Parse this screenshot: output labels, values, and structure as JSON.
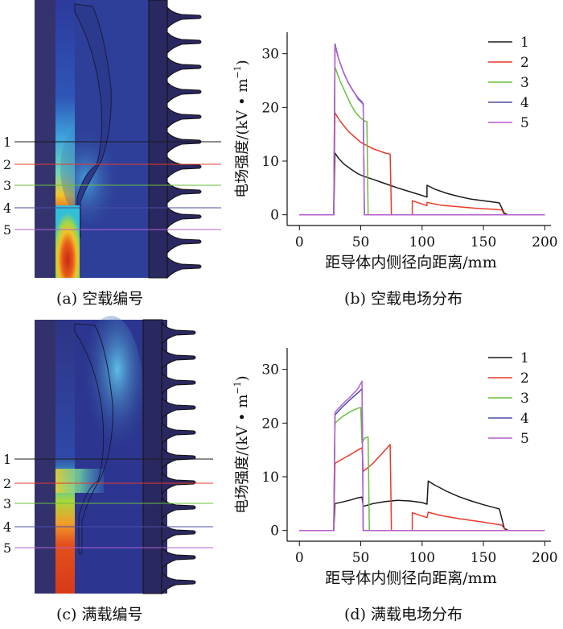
{
  "panels": {
    "a": {
      "caption": "(a)  空载编号",
      "lines": [
        "1",
        "2",
        "3",
        "4",
        "5"
      ]
    },
    "c": {
      "caption": "(c)  满载编号",
      "lines": [
        "1",
        "2",
        "3",
        "4",
        "5"
      ]
    },
    "b": {
      "caption": "(b)  空载电场分布"
    },
    "d": {
      "caption": "(d)  满载电场分布"
    }
  },
  "line_colors": [
    "#1a1a1a",
    "#e8392a",
    "#6bbf3b",
    "#4b4fa6",
    "#b45fcf"
  ],
  "chart_data": [
    {
      "id": "b",
      "type": "line",
      "title": "空载电场分布",
      "xlabel": "距导体内侧径向距离/mm",
      "ylabel": "电场强度/(kV • m",
      "ylabel_sup": "−1",
      "ylabel_close": ")",
      "xlim": [
        -10,
        205
      ],
      "ylim": [
        -2,
        34
      ],
      "xticks": [
        "0",
        "50",
        "100",
        "150",
        "200"
      ],
      "yticks": [
        "0",
        "10",
        "20",
        "30"
      ],
      "legend": [
        "1",
        "2",
        "3",
        "4",
        "5"
      ],
      "legend_position": "top-right",
      "series": [
        {
          "name": "1",
          "points": [
            [
              0,
              0
            ],
            [
              28,
              0
            ],
            [
              28,
              0.4
            ],
            [
              29,
              11.5
            ],
            [
              32,
              10.5
            ],
            [
              36,
              9.5
            ],
            [
              42,
              8.5
            ],
            [
              48,
              7.6
            ],
            [
              52,
              7.2
            ],
            [
              60,
              6.6
            ],
            [
              70,
              5.8
            ],
            [
              80,
              5.0
            ],
            [
              90,
              4.3
            ],
            [
              100,
              3.6
            ],
            [
              104,
              3.3
            ],
            [
              104,
              5.5
            ],
            [
              110,
              4.8
            ],
            [
              120,
              4.0
            ],
            [
              130,
              3.4
            ],
            [
              140,
              2.9
            ],
            [
              150,
              2.6
            ],
            [
              160,
              2.3
            ],
            [
              163,
              2.2
            ],
            [
              167,
              0.3
            ],
            [
              170,
              0
            ],
            [
              200,
              0
            ]
          ]
        },
        {
          "name": "2",
          "points": [
            [
              0,
              0
            ],
            [
              28,
              0
            ],
            [
              28,
              0.4
            ],
            [
              29,
              19
            ],
            [
              33,
              17.5
            ],
            [
              40,
              15.5
            ],
            [
              50,
              13.5
            ],
            [
              60,
              12.3
            ],
            [
              70,
              11.5
            ],
            [
              74,
              11.3
            ],
            [
              75,
              0
            ],
            [
              92,
              0
            ],
            [
              92,
              2.6
            ],
            [
              100,
              2.0
            ],
            [
              104,
              1.7
            ],
            [
              104,
              2.3
            ],
            [
              115,
              1.8
            ],
            [
              130,
              1.5
            ],
            [
              145,
              1.2
            ],
            [
              160,
              1.0
            ],
            [
              165,
              0.9
            ],
            [
              167,
              0
            ],
            [
              200,
              0
            ]
          ]
        },
        {
          "name": "3",
          "points": [
            [
              0,
              0
            ],
            [
              28,
              0
            ],
            [
              28,
              0.4
            ],
            [
              29,
              27.5
            ],
            [
              33,
              25
            ],
            [
              38,
              22.5
            ],
            [
              42,
              20.5
            ],
            [
              46,
              19
            ],
            [
              50,
              18
            ],
            [
              53,
              17.5
            ],
            [
              55,
              17.3
            ],
            [
              56,
              0
            ],
            [
              200,
              0
            ]
          ]
        },
        {
          "name": "4",
          "points": [
            [
              0,
              0
            ],
            [
              28,
              0
            ],
            [
              28,
              0.4
            ],
            [
              29,
              31.8
            ],
            [
              32,
              29
            ],
            [
              36,
              26.5
            ],
            [
              40,
              24.5
            ],
            [
              44,
              23
            ],
            [
              48,
              21.7
            ],
            [
              51,
              21
            ],
            [
              52,
              20.6
            ],
            [
              53,
              0
            ],
            [
              200,
              0
            ]
          ]
        },
        {
          "name": "5",
          "points": [
            [
              0,
              0
            ],
            [
              28,
              0
            ],
            [
              28,
              0.4
            ],
            [
              29,
              31.5
            ],
            [
              32,
              29
            ],
            [
              36,
              26.5
            ],
            [
              40,
              24.5
            ],
            [
              44,
              23
            ],
            [
              48,
              21.5
            ],
            [
              51,
              20.8
            ],
            [
              52,
              20.5
            ],
            [
              53,
              0
            ],
            [
              200,
              0
            ]
          ]
        }
      ]
    },
    {
      "id": "d",
      "type": "line",
      "title": "满载电场分布",
      "xlabel": "距导体内侧径向距离/mm",
      "ylabel": "电场强度/(kV • m",
      "ylabel_sup": "−1",
      "ylabel_close": ")",
      "xlim": [
        -10,
        205
      ],
      "ylim": [
        -2,
        34
      ],
      "xticks": [
        "0",
        "50",
        "100",
        "150",
        "200"
      ],
      "yticks": [
        "0",
        "10",
        "20",
        "30"
      ],
      "legend": [
        "1",
        "2",
        "3",
        "4",
        "5"
      ],
      "legend_position": "top-right",
      "series": [
        {
          "name": "1",
          "points": [
            [
              0,
              0
            ],
            [
              28,
              0
            ],
            [
              28,
              0.3
            ],
            [
              29,
              5
            ],
            [
              35,
              5.3
            ],
            [
              42,
              5.7
            ],
            [
              48,
              6.1
            ],
            [
              51,
              6.2
            ],
            [
              52,
              4.5
            ],
            [
              60,
              5.0
            ],
            [
              70,
              5.4
            ],
            [
              80,
              5.6
            ],
            [
              90,
              5.5
            ],
            [
              100,
              5.2
            ],
            [
              104,
              4.9
            ],
            [
              105,
              9.2
            ],
            [
              110,
              8.5
            ],
            [
              120,
              7.3
            ],
            [
              130,
              6.3
            ],
            [
              140,
              5.5
            ],
            [
              150,
              4.8
            ],
            [
              160,
              4.2
            ],
            [
              163,
              4.0
            ],
            [
              167,
              0.4
            ],
            [
              170,
              0
            ],
            [
              200,
              0
            ]
          ]
        },
        {
          "name": "2",
          "points": [
            [
              0,
              0
            ],
            [
              28,
              0
            ],
            [
              28,
              0.3
            ],
            [
              29,
              12.5
            ],
            [
              35,
              13.3
            ],
            [
              42,
              14.2
            ],
            [
              50,
              15.3
            ],
            [
              51,
              15.4
            ],
            [
              52,
              11
            ],
            [
              60,
              12.5
            ],
            [
              68,
              14.5
            ],
            [
              74,
              16
            ],
            [
              75,
              0
            ],
            [
              92,
              0
            ],
            [
              92,
              3.3
            ],
            [
              100,
              2.7
            ],
            [
              104,
              2.4
            ],
            [
              105,
              3.4
            ],
            [
              115,
              2.8
            ],
            [
              130,
              2.2
            ],
            [
              145,
              1.7
            ],
            [
              160,
              1.2
            ],
            [
              165,
              1.0
            ],
            [
              168,
              0
            ],
            [
              200,
              0
            ]
          ]
        },
        {
          "name": "3",
          "points": [
            [
              0,
              0
            ],
            [
              28,
              0
            ],
            [
              28,
              0.3
            ],
            [
              29,
              20
            ],
            [
              35,
              21.2
            ],
            [
              42,
              22.2
            ],
            [
              48,
              22.8
            ],
            [
              50,
              22.9
            ],
            [
              51,
              16.3
            ],
            [
              53,
              17.2
            ],
            [
              56,
              17.4
            ],
            [
              57,
              0
            ],
            [
              200,
              0
            ]
          ]
        },
        {
          "name": "4",
          "points": [
            [
              0,
              0
            ],
            [
              28,
              0
            ],
            [
              28,
              0.3
            ],
            [
              29,
              21.5
            ],
            [
              35,
              23
            ],
            [
              42,
              24.5
            ],
            [
              48,
              25.7
            ],
            [
              51,
              26.4
            ],
            [
              52,
              0
            ],
            [
              200,
              0
            ]
          ]
        },
        {
          "name": "5",
          "points": [
            [
              0,
              0
            ],
            [
              28,
              0
            ],
            [
              28,
              0.3
            ],
            [
              29,
              22
            ],
            [
              35,
              23.5
            ],
            [
              42,
              25
            ],
            [
              48,
              26.5
            ],
            [
              51,
              27.8
            ],
            [
              52,
              0
            ],
            [
              200,
              0
            ]
          ]
        }
      ]
    }
  ]
}
